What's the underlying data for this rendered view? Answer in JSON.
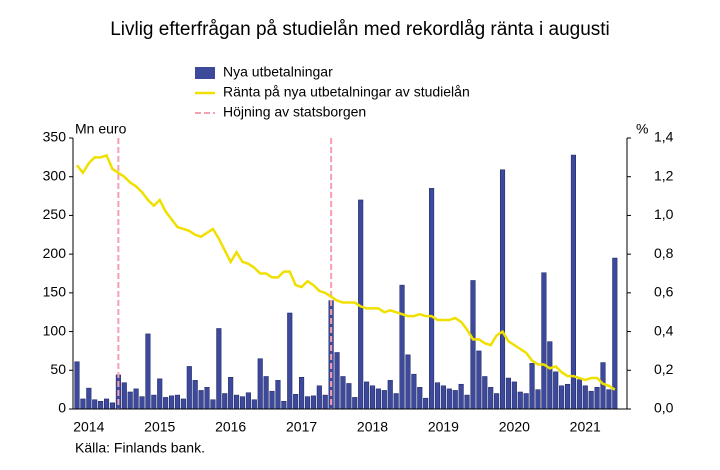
{
  "chart_data": {
    "type": "bar_line",
    "title": "Livlig efterfrågan på studielån med rekordlåg ränta i augusti",
    "y_label": "Mn euro",
    "y2_label": "%",
    "source": "Källa: Finlands bank.",
    "marker_name": "Höjning av statsborgen",
    "marker_color": "#f4a0b0",
    "markers": [
      7,
      43
    ],
    "categories": [
      null,
      null,
      "2014",
      null,
      null,
      null,
      null,
      null,
      null,
      null,
      null,
      null,
      null,
      null,
      "2015",
      null,
      null,
      null,
      null,
      null,
      null,
      null,
      null,
      null,
      null,
      null,
      "2016",
      null,
      null,
      null,
      null,
      null,
      null,
      null,
      null,
      null,
      null,
      null,
      "2017",
      null,
      null,
      null,
      null,
      null,
      null,
      null,
      null,
      null,
      null,
      null,
      "2018",
      null,
      null,
      null,
      null,
      null,
      null,
      null,
      null,
      null,
      null,
      null,
      "2019",
      null,
      null,
      null,
      null,
      null,
      null,
      null,
      null,
      null,
      null,
      null,
      "2020",
      null,
      null,
      null,
      null,
      null,
      null,
      null,
      null,
      null,
      null,
      null,
      "2021",
      null,
      null,
      null,
      null,
      null
    ],
    "series": [
      {
        "name": "Nya utbetalningar",
        "color": "#3d4a9c",
        "kind": "bar",
        "values": [
          61,
          13,
          27,
          12,
          10,
          13,
          8,
          44,
          34,
          22,
          26,
          16,
          97,
          18,
          39,
          15,
          17,
          18,
          13,
          55,
          37,
          24,
          28,
          12,
          104,
          20,
          41,
          18,
          16,
          21,
          12,
          65,
          42,
          23,
          37,
          10,
          124,
          19,
          41,
          16,
          17,
          30,
          18,
          140,
          73,
          42,
          33,
          15,
          270,
          35,
          30,
          26,
          24,
          37,
          20,
          160,
          70,
          45,
          28,
          14,
          285,
          34,
          30,
          26,
          24,
          32,
          18,
          166,
          75,
          42,
          28,
          20,
          309,
          40,
          35,
          22,
          20,
          59,
          25,
          176,
          87,
          48,
          30,
          32,
          328,
          38,
          30,
          23,
          28,
          60,
          25,
          195
        ]
      },
      {
        "name": "Ränta på nya utbetalningar av studielån",
        "color": "#f0e000",
        "kind": "line",
        "axis": "y2",
        "values": [
          1.26,
          1.22,
          1.27,
          1.3,
          1.3,
          1.31,
          1.24,
          1.22,
          1.2,
          1.17,
          1.15,
          1.12,
          1.08,
          1.05,
          1.08,
          1.02,
          0.98,
          0.94,
          0.93,
          0.92,
          0.9,
          0.89,
          0.91,
          0.93,
          0.88,
          0.82,
          0.76,
          0.81,
          0.76,
          0.75,
          0.73,
          0.7,
          0.7,
          0.68,
          0.68,
          0.71,
          0.71,
          0.64,
          0.63,
          0.66,
          0.64,
          0.61,
          0.6,
          0.58,
          0.56,
          0.55,
          0.55,
          0.55,
          0.53,
          0.52,
          0.52,
          0.52,
          0.5,
          0.51,
          0.5,
          0.49,
          0.48,
          0.48,
          0.49,
          0.48,
          0.48,
          0.46,
          0.46,
          0.46,
          0.47,
          0.45,
          0.41,
          0.36,
          0.36,
          0.34,
          0.33,
          0.38,
          0.4,
          0.35,
          0.33,
          0.31,
          0.29,
          0.25,
          0.23,
          0.23,
          0.21,
          0.22,
          0.19,
          0.17,
          0.17,
          0.16,
          0.15,
          0.16,
          0.16,
          0.13,
          0.12,
          0.1
        ]
      }
    ],
    "ylim": [
      0,
      350
    ],
    "yticks": [
      0,
      50,
      100,
      150,
      200,
      250,
      300,
      350
    ],
    "y2lim": [
      0,
      1.4
    ],
    "y2ticks": [
      {
        "value": 0,
        "label": "0,0"
      },
      {
        "value": 0.2,
        "label": "0,2"
      },
      {
        "value": 0.4,
        "label": "0,4"
      },
      {
        "value": 0.6,
        "label": "0,6"
      },
      {
        "value": 0.8,
        "label": "0,8"
      },
      {
        "value": 1,
        "label": "1,0"
      },
      {
        "value": 1.2,
        "label": "1,2"
      },
      {
        "value": 1.4,
        "label": "1,4"
      }
    ]
  }
}
